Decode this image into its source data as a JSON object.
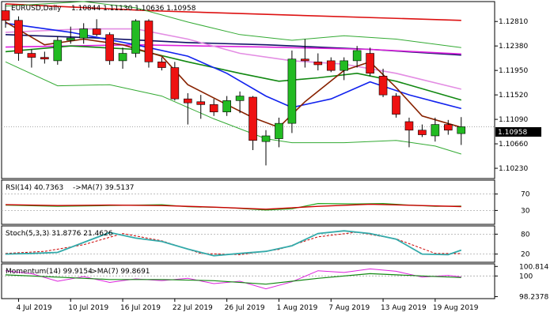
{
  "chart_data": {
    "type": "candlestick",
    "instrument_label": "EURUSD,Daily",
    "ohlc_text": "1.10844 1.11130 1.10636 1.10958",
    "current_price_label": "1.10958",
    "colors": {
      "bull": "#22bb22",
      "bear": "#ee1111",
      "ma_red": "#dd1111",
      "ma_navy": "#111166",
      "ma_magenta": "#dd22dd",
      "ma_pink": "#e38de3",
      "ma_green": "#118811",
      "ma_blue": "#1122ee",
      "ma_brown": "#882200",
      "bollinger": "#33aa33",
      "rsi_line": "#22aa22",
      "rsi_ma": "#cc0000",
      "stoch_main": "#33aaaa",
      "stoch_signal": "#cc0000",
      "momentum": "#dd22dd",
      "momentum_ma": "#118811",
      "grid": "#aaaaaa"
    },
    "x_labels": [
      {
        "label": "4 Jul 2019",
        "index": 1
      },
      {
        "label": "10 Jul 2019",
        "index": 5
      },
      {
        "label": "16 Jul 2019",
        "index": 9
      },
      {
        "label": "22 Jul 2019",
        "index": 13
      },
      {
        "label": "26 Jul 2019",
        "index": 17
      },
      {
        "label": "1 Aug 2019",
        "index": 21
      },
      {
        "label": "7 Aug 2019",
        "index": 25
      },
      {
        "label": "13 Aug 2019",
        "index": 29
      },
      {
        "label": "19 Aug 2019",
        "index": 33
      }
    ],
    "price_axis": {
      "ylim": [
        1.1005,
        1.1316
      ],
      "ticks": [
        "1.12810",
        "1.12380",
        "1.11950",
        "1.11520",
        "1.11090",
        "1.10660",
        "1.10230"
      ]
    },
    "candles": [
      {
        "o": 1.13,
        "h": 1.1312,
        "l": 1.127,
        "c": 1.1283
      },
      {
        "o": 1.1283,
        "h": 1.129,
        "l": 1.1212,
        "c": 1.1225
      },
      {
        "o": 1.1225,
        "h": 1.1232,
        "l": 1.12,
        "c": 1.1218
      },
      {
        "o": 1.1218,
        "h": 1.1228,
        "l": 1.1207,
        "c": 1.1215
      },
      {
        "o": 1.1212,
        "h": 1.1255,
        "l": 1.1205,
        "c": 1.1248
      },
      {
        "o": 1.1248,
        "h": 1.1272,
        "l": 1.1242,
        "c": 1.1252
      },
      {
        "o": 1.1252,
        "h": 1.1278,
        "l": 1.1242,
        "c": 1.1268
      },
      {
        "o": 1.1268,
        "h": 1.1285,
        "l": 1.1255,
        "c": 1.1258
      },
      {
        "o": 1.1258,
        "h": 1.1262,
        "l": 1.1205,
        "c": 1.1212
      },
      {
        "o": 1.1212,
        "h": 1.1235,
        "l": 1.1198,
        "c": 1.1225
      },
      {
        "o": 1.1225,
        "h": 1.1285,
        "l": 1.1218,
        "c": 1.1282
      },
      {
        "o": 1.1282,
        "h": 1.1285,
        "l": 1.12,
        "c": 1.121
      },
      {
        "o": 1.121,
        "h": 1.1218,
        "l": 1.1195,
        "c": 1.12
      },
      {
        "o": 1.12,
        "h": 1.121,
        "l": 1.1142,
        "c": 1.1145
      },
      {
        "o": 1.1145,
        "h": 1.1155,
        "l": 1.11,
        "c": 1.1138
      },
      {
        "o": 1.114,
        "h": 1.1152,
        "l": 1.111,
        "c": 1.1135
      },
      {
        "o": 1.1135,
        "h": 1.1145,
        "l": 1.1115,
        "c": 1.1122
      },
      {
        "o": 1.1122,
        "h": 1.115,
        "l": 1.1115,
        "c": 1.1142
      },
      {
        "o": 1.1142,
        "h": 1.1158,
        "l": 1.112,
        "c": 1.115
      },
      {
        "o": 1.1148,
        "h": 1.115,
        "l": 1.1055,
        "c": 1.1072
      },
      {
        "o": 1.107,
        "h": 1.109,
        "l": 1.1028,
        "c": 1.108
      },
      {
        "o": 1.1075,
        "h": 1.1112,
        "l": 1.106,
        "c": 1.1102
      },
      {
        "o": 1.1102,
        "h": 1.123,
        "l": 1.1085,
        "c": 1.1215
      },
      {
        "o": 1.1215,
        "h": 1.125,
        "l": 1.12,
        "c": 1.1212
      },
      {
        "o": 1.121,
        "h": 1.1225,
        "l": 1.1195,
        "c": 1.1205
      },
      {
        "o": 1.1212,
        "h": 1.1218,
        "l": 1.1192,
        "c": 1.1195
      },
      {
        "o": 1.1195,
        "h": 1.1218,
        "l": 1.1178,
        "c": 1.1212
      },
      {
        "o": 1.1212,
        "h": 1.1238,
        "l": 1.12,
        "c": 1.123
      },
      {
        "o": 1.1225,
        "h": 1.1235,
        "l": 1.1185,
        "c": 1.119
      },
      {
        "o": 1.1185,
        "h": 1.1198,
        "l": 1.1148,
        "c": 1.1152
      },
      {
        "o": 1.115,
        "h": 1.1155,
        "l": 1.1112,
        "c": 1.1118
      },
      {
        "o": 1.1105,
        "h": 1.1112,
        "l": 1.106,
        "c": 1.109
      },
      {
        "o": 1.109,
        "h": 1.11,
        "l": 1.1078,
        "c": 1.1082
      },
      {
        "o": 1.108,
        "h": 1.1112,
        "l": 1.107,
        "c": 1.11
      },
      {
        "o": 1.11,
        "h": 1.1108,
        "l": 1.1082,
        "c": 1.109
      },
      {
        "o": 1.1084,
        "h": 1.1113,
        "l": 1.1064,
        "c": 1.1096
      }
    ],
    "overlay_lines": [
      {
        "color_key": "ma_red",
        "points": [
          [
            0,
            1.1312
          ],
          [
            11,
            1.13
          ],
          [
            35,
            1.1283
          ]
        ]
      },
      {
        "color_key": "ma_navy",
        "points": [
          [
            0,
            1.1258
          ],
          [
            7,
            1.1252
          ],
          [
            14,
            1.1244
          ],
          [
            20,
            1.124
          ],
          [
            28,
            1.1232
          ],
          [
            35,
            1.1222
          ]
        ]
      },
      {
        "color_key": "ma_magenta",
        "points": [
          [
            0,
            1.1236
          ],
          [
            10,
            1.124
          ],
          [
            20,
            1.1236
          ],
          [
            28,
            1.1232
          ],
          [
            35,
            1.1224
          ]
        ]
      },
      {
        "color_key": "ma_pink",
        "points": [
          [
            0,
            1.1262
          ],
          [
            6,
            1.1268
          ],
          [
            10,
            1.1268
          ],
          [
            14,
            1.125
          ],
          [
            18,
            1.1225
          ],
          [
            22,
            1.1212
          ],
          [
            26,
            1.1206
          ],
          [
            30,
            1.119
          ],
          [
            35,
            1.1162
          ]
        ]
      },
      {
        "color_key": "ma_green",
        "points": [
          [
            0,
            1.1228
          ],
          [
            5,
            1.1238
          ],
          [
            10,
            1.1232
          ],
          [
            14,
            1.121
          ],
          [
            18,
            1.119
          ],
          [
            21,
            1.1176
          ],
          [
            24,
            1.1182
          ],
          [
            27,
            1.119
          ],
          [
            30,
            1.1176
          ],
          [
            35,
            1.1143
          ]
        ]
      },
      {
        "color_key": "ma_blue",
        "points": [
          [
            0,
            1.1278
          ],
          [
            5,
            1.1262
          ],
          [
            10,
            1.124
          ],
          [
            14,
            1.122
          ],
          [
            17,
            1.119
          ],
          [
            20,
            1.115
          ],
          [
            22,
            1.113
          ],
          [
            25,
            1.1145
          ],
          [
            28,
            1.1175
          ],
          [
            31,
            1.1152
          ],
          [
            33,
            1.114
          ],
          [
            35,
            1.1128
          ]
        ]
      },
      {
        "color_key": "ma_brown",
        "points": [
          [
            0,
            1.128
          ],
          [
            3,
            1.124
          ],
          [
            6,
            1.125
          ],
          [
            9,
            1.124
          ],
          [
            12,
            1.122
          ],
          [
            14,
            1.117
          ],
          [
            17,
            1.1135
          ],
          [
            19,
            1.1112
          ],
          [
            21,
            1.1095
          ],
          [
            23,
            1.114
          ],
          [
            26,
            1.1195
          ],
          [
            28,
            1.121
          ],
          [
            30,
            1.1165
          ],
          [
            32,
            1.1115
          ],
          [
            35,
            1.1095
          ]
        ]
      },
      {
        "color_key": "bollinger",
        "points": [
          [
            0,
            1.1308
          ],
          [
            6,
            1.1316
          ],
          [
            10,
            1.1305
          ],
          [
            14,
            1.128
          ],
          [
            18,
            1.1258
          ],
          [
            22,
            1.1248
          ],
          [
            26,
            1.1256
          ],
          [
            30,
            1.125
          ],
          [
            35,
            1.1235
          ]
        ]
      },
      {
        "color_key": "bollinger",
        "points": [
          [
            0,
            1.121
          ],
          [
            4,
            1.1168
          ],
          [
            8,
            1.117
          ],
          [
            12,
            1.115
          ],
          [
            16,
            1.111
          ],
          [
            20,
            1.1075
          ],
          [
            22,
            1.1068
          ],
          [
            26,
            1.1068
          ],
          [
            30,
            1.1072
          ],
          [
            33,
            1.1062
          ],
          [
            35,
            1.1048
          ]
        ]
      }
    ],
    "rsi": {
      "label": "RSI(14) 40.7363",
      "ma_label": "->MA(7) 39.5137",
      "ylim": [
        0,
        100
      ],
      "ticks": [
        "70",
        "30"
      ],
      "levels": [
        70,
        30
      ],
      "line": [
        [
          0,
          43
        ],
        [
          4,
          40
        ],
        [
          8,
          42
        ],
        [
          12,
          44
        ],
        [
          14,
          39
        ],
        [
          17,
          37
        ],
        [
          20,
          31
        ],
        [
          22,
          34
        ],
        [
          24,
          47
        ],
        [
          27,
          46
        ],
        [
          29,
          47
        ],
        [
          31,
          43
        ],
        [
          33,
          40
        ],
        [
          35,
          40.7
        ]
      ],
      "ma": [
        [
          0,
          44
        ],
        [
          4,
          42
        ],
        [
          8,
          43
        ],
        [
          12,
          42
        ],
        [
          16,
          38
        ],
        [
          20,
          33
        ],
        [
          24,
          40
        ],
        [
          28,
          45
        ],
        [
          32,
          42
        ],
        [
          35,
          39.5
        ]
      ]
    },
    "stoch": {
      "label": "Stoch(5,3,3) 31.8776 21.4626",
      "ylim": [
        0,
        100
      ],
      "ticks": [
        "80",
        "20"
      ],
      "levels": [
        80,
        20
      ],
      "main": [
        [
          0,
          20
        ],
        [
          2,
          22
        ],
        [
          4,
          25
        ],
        [
          6,
          55
        ],
        [
          8,
          85
        ],
        [
          10,
          68
        ],
        [
          12,
          58
        ],
        [
          14,
          35
        ],
        [
          16,
          15
        ],
        [
          18,
          22
        ],
        [
          20,
          28
        ],
        [
          22,
          45
        ],
        [
          24,
          82
        ],
        [
          26,
          90
        ],
        [
          28,
          82
        ],
        [
          30,
          65
        ],
        [
          32,
          20
        ],
        [
          34,
          18
        ],
        [
          35,
          31.9
        ]
      ],
      "signal": [
        [
          0,
          22
        ],
        [
          3,
          28
        ],
        [
          6,
          48
        ],
        [
          9,
          82
        ],
        [
          12,
          60
        ],
        [
          15,
          22
        ],
        [
          18,
          18
        ],
        [
          21,
          34
        ],
        [
          24,
          72
        ],
        [
          27,
          86
        ],
        [
          30,
          66
        ],
        [
          33,
          22
        ],
        [
          35,
          21.5
        ]
      ]
    },
    "momentum": {
      "label": "Momentum(14) 99.9154",
      "ma_label": "->MA(7) 99.8691",
      "ylim": [
        98.2,
        100.9
      ],
      "ticks": [
        "100.814",
        "100",
        "98.2378"
      ],
      "line": [
        [
          0,
          100.45
        ],
        [
          2,
          100.2
        ],
        [
          4,
          99.55
        ],
        [
          6,
          99.95
        ],
        [
          8,
          99.45
        ],
        [
          10,
          99.75
        ],
        [
          12,
          99.6
        ],
        [
          14,
          99.8
        ],
        [
          16,
          99.35
        ],
        [
          18,
          99.55
        ],
        [
          20,
          98.9
        ],
        [
          22,
          99.5
        ],
        [
          24,
          100.45
        ],
        [
          26,
          100.3
        ],
        [
          28,
          100.6
        ],
        [
          30,
          100.4
        ],
        [
          32,
          99.9
        ],
        [
          34,
          100.05
        ],
        [
          35,
          99.92
        ]
      ],
      "ma": [
        [
          0,
          100.1
        ],
        [
          4,
          99.9
        ],
        [
          8,
          99.7
        ],
        [
          12,
          99.7
        ],
        [
          16,
          99.6
        ],
        [
          20,
          99.3
        ],
        [
          24,
          99.8
        ],
        [
          28,
          100.2
        ],
        [
          32,
          100.0
        ],
        [
          35,
          99.87
        ]
      ]
    }
  }
}
